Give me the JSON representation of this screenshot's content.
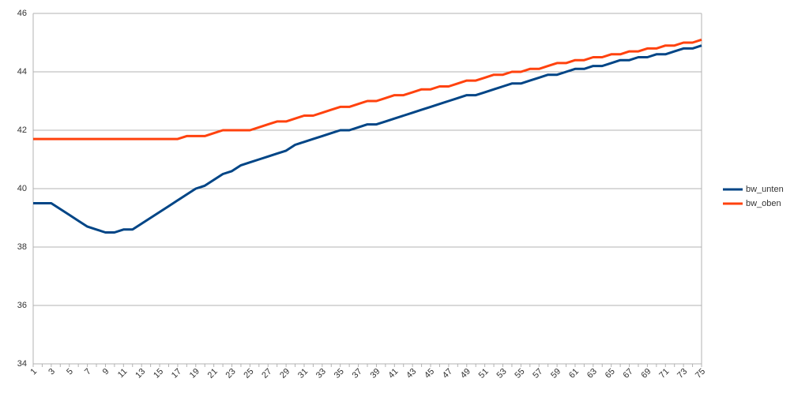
{
  "chart_data": {
    "type": "line",
    "categories": [
      "1",
      null,
      "3",
      null,
      "5",
      null,
      "7",
      null,
      "9",
      null,
      "11",
      null,
      "13",
      null,
      "15",
      null,
      "17",
      null,
      "19",
      null,
      "21",
      null,
      "23",
      null,
      "25",
      null,
      "27",
      null,
      "29",
      null,
      "31",
      null,
      "33",
      null,
      "35",
      null,
      "37",
      null,
      "39",
      null,
      "41",
      null,
      "43",
      null,
      "45",
      null,
      "47",
      null,
      "49",
      null,
      "51",
      null,
      "53",
      null,
      "55",
      null,
      "57",
      null,
      "59",
      null,
      "61",
      null,
      "63",
      null,
      "65",
      null,
      "67",
      null,
      "69",
      null,
      "71",
      null,
      "73",
      null,
      "75"
    ],
    "series": [
      {
        "name": "bw_unten",
        "color": "#004586",
        "values": [
          39.5,
          39.5,
          39.5,
          39.3,
          39.1,
          38.9,
          38.7,
          38.6,
          38.5,
          38.5,
          38.6,
          38.6,
          38.8,
          39.0,
          39.2,
          39.4,
          39.6,
          39.8,
          40.0,
          40.1,
          40.3,
          40.5,
          40.6,
          40.8,
          40.9,
          41.0,
          41.1,
          41.2,
          41.3,
          41.5,
          41.6,
          41.7,
          41.8,
          41.9,
          42.0,
          42.0,
          42.1,
          42.2,
          42.2,
          42.3,
          42.4,
          42.5,
          42.6,
          42.7,
          42.8,
          42.9,
          43.0,
          43.1,
          43.2,
          43.2,
          43.3,
          43.4,
          43.5,
          43.6,
          43.6,
          43.7,
          43.8,
          43.9,
          43.9,
          44.0,
          44.1,
          44.1,
          44.2,
          44.2,
          44.3,
          44.4,
          44.4,
          44.5,
          44.5,
          44.6,
          44.6,
          44.7,
          44.8,
          44.8,
          44.9
        ]
      },
      {
        "name": "bw_oben",
        "color": "#ff420e",
        "values": [
          41.7,
          41.7,
          41.7,
          41.7,
          41.7,
          41.7,
          41.7,
          41.7,
          41.7,
          41.7,
          41.7,
          41.7,
          41.7,
          41.7,
          41.7,
          41.7,
          41.7,
          41.8,
          41.8,
          41.8,
          41.9,
          42.0,
          42.0,
          42.0,
          42.0,
          42.1,
          42.2,
          42.3,
          42.3,
          42.4,
          42.5,
          42.5,
          42.6,
          42.7,
          42.8,
          42.8,
          42.9,
          43.0,
          43.0,
          43.1,
          43.2,
          43.2,
          43.3,
          43.4,
          43.4,
          43.5,
          43.5,
          43.6,
          43.7,
          43.7,
          43.8,
          43.9,
          43.9,
          44.0,
          44.0,
          44.1,
          44.1,
          44.2,
          44.3,
          44.3,
          44.4,
          44.4,
          44.5,
          44.5,
          44.6,
          44.6,
          44.7,
          44.7,
          44.8,
          44.8,
          44.9,
          44.9,
          45.0,
          45.0,
          45.1
        ]
      }
    ],
    "ylim": [
      34,
      46
    ],
    "yticks": [
      34,
      36,
      38,
      40,
      42,
      44,
      46
    ],
    "grid": true,
    "legend": "right"
  }
}
